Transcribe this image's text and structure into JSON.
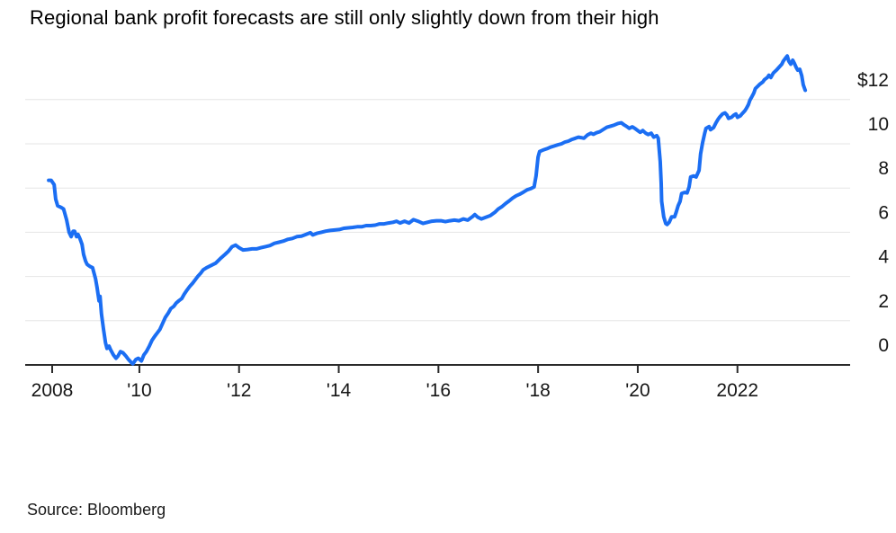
{
  "title": "Regional bank profit forecasts are still only slightly down from their high",
  "source": "Source: Bloomberg",
  "chart_data": {
    "type": "line",
    "title": "Regional bank profit forecasts are still only slightly down from their high",
    "xlabel": "",
    "ylabel": "",
    "unit": "$ (USD)",
    "grid": true,
    "legend_position": "none",
    "line_color": "#1b6ef3",
    "axis_color": "#2a2a2a",
    "grid_color": "#e5e5e5",
    "y_axis": {
      "side": "right",
      "range": [
        0,
        14.2
      ],
      "ticks": [
        {
          "v": 12,
          "label": "$12"
        },
        {
          "v": 10,
          "label": "10"
        },
        {
          "v": 8,
          "label": "8"
        },
        {
          "v": 6,
          "label": "6"
        },
        {
          "v": 4,
          "label": "4"
        },
        {
          "v": 2,
          "label": "2"
        },
        {
          "v": 0,
          "label": "0"
        }
      ]
    },
    "x_axis": {
      "range": [
        2008.1,
        2023.45
      ],
      "ticks": [
        {
          "t": 2008.25,
          "label": "2008"
        },
        {
          "t": 2010,
          "label": "'10"
        },
        {
          "t": 2012,
          "label": "'12"
        },
        {
          "t": 2014,
          "label": "'14"
        },
        {
          "t": 2016,
          "label": "'16"
        },
        {
          "t": 2018,
          "label": "'18"
        },
        {
          "t": 2020,
          "label": "'20"
        },
        {
          "t": 2022,
          "label": "2022"
        }
      ]
    },
    "series": [
      {
        "name": "Regional bank profit forecast",
        "points": [
          [
            2008.18,
            8.35
          ],
          [
            2008.23,
            8.35
          ],
          [
            2008.29,
            8.15
          ],
          [
            2008.32,
            7.5
          ],
          [
            2008.36,
            7.2
          ],
          [
            2008.43,
            7.12
          ],
          [
            2008.48,
            7.05
          ],
          [
            2008.54,
            6.55
          ],
          [
            2008.59,
            6.0
          ],
          [
            2008.63,
            5.8
          ],
          [
            2008.67,
            6.05
          ],
          [
            2008.7,
            6.05
          ],
          [
            2008.74,
            5.8
          ],
          [
            2008.77,
            5.9
          ],
          [
            2008.81,
            5.7
          ],
          [
            2008.85,
            5.45
          ],
          [
            2008.88,
            5.0
          ],
          [
            2008.92,
            4.7
          ],
          [
            2008.95,
            4.55
          ],
          [
            2009.01,
            4.45
          ],
          [
            2009.06,
            4.4
          ],
          [
            2009.12,
            3.9
          ],
          [
            2009.15,
            3.5
          ],
          [
            2009.19,
            2.9
          ],
          [
            2009.21,
            3.1
          ],
          [
            2009.24,
            2.3
          ],
          [
            2009.28,
            1.6
          ],
          [
            2009.32,
            1.0
          ],
          [
            2009.35,
            0.75
          ],
          [
            2009.39,
            0.85
          ],
          [
            2009.42,
            0.7
          ],
          [
            2009.48,
            0.45
          ],
          [
            2009.53,
            0.3
          ],
          [
            2009.57,
            0.4
          ],
          [
            2009.62,
            0.6
          ],
          [
            2009.67,
            0.55
          ],
          [
            2009.73,
            0.4
          ],
          [
            2009.78,
            0.25
          ],
          [
            2009.84,
            0.1
          ],
          [
            2009.87,
            0.05
          ],
          [
            2009.93,
            0.25
          ],
          [
            2009.98,
            0.3
          ],
          [
            2010.04,
            0.18
          ],
          [
            2010.09,
            0.45
          ],
          [
            2010.14,
            0.6
          ],
          [
            2010.2,
            0.85
          ],
          [
            2010.25,
            1.1
          ],
          [
            2010.31,
            1.3
          ],
          [
            2010.36,
            1.45
          ],
          [
            2010.41,
            1.6
          ],
          [
            2010.47,
            1.9
          ],
          [
            2010.52,
            2.15
          ],
          [
            2010.58,
            2.35
          ],
          [
            2010.63,
            2.55
          ],
          [
            2010.69,
            2.65
          ],
          [
            2010.74,
            2.8
          ],
          [
            2010.79,
            2.9
          ],
          [
            2010.85,
            3.0
          ],
          [
            2010.9,
            3.2
          ],
          [
            2010.96,
            3.4
          ],
          [
            2011.01,
            3.55
          ],
          [
            2011.07,
            3.7
          ],
          [
            2011.12,
            3.85
          ],
          [
            2011.17,
            4.0
          ],
          [
            2011.23,
            4.15
          ],
          [
            2011.28,
            4.3
          ],
          [
            2011.35,
            4.4
          ],
          [
            2011.44,
            4.5
          ],
          [
            2011.53,
            4.6
          ],
          [
            2011.62,
            4.8
          ],
          [
            2011.72,
            5.0
          ],
          [
            2011.79,
            5.15
          ],
          [
            2011.86,
            5.35
          ],
          [
            2011.93,
            5.42
          ],
          [
            2012.0,
            5.3
          ],
          [
            2012.08,
            5.2
          ],
          [
            2012.17,
            5.22
          ],
          [
            2012.26,
            5.25
          ],
          [
            2012.35,
            5.25
          ],
          [
            2012.44,
            5.3
          ],
          [
            2012.53,
            5.35
          ],
          [
            2012.62,
            5.4
          ],
          [
            2012.71,
            5.5
          ],
          [
            2012.8,
            5.55
          ],
          [
            2012.89,
            5.6
          ],
          [
            2012.98,
            5.68
          ],
          [
            2013.07,
            5.72
          ],
          [
            2013.16,
            5.8
          ],
          [
            2013.25,
            5.82
          ],
          [
            2013.34,
            5.9
          ],
          [
            2013.43,
            5.98
          ],
          [
            2013.48,
            5.88
          ],
          [
            2013.56,
            5.95
          ],
          [
            2013.65,
            6.0
          ],
          [
            2013.74,
            6.05
          ],
          [
            2013.83,
            6.08
          ],
          [
            2013.92,
            6.1
          ],
          [
            2014.01,
            6.12
          ],
          [
            2014.1,
            6.18
          ],
          [
            2014.19,
            6.2
          ],
          [
            2014.28,
            6.22
          ],
          [
            2014.37,
            6.25
          ],
          [
            2014.46,
            6.25
          ],
          [
            2014.55,
            6.3
          ],
          [
            2014.64,
            6.3
          ],
          [
            2014.73,
            6.32
          ],
          [
            2014.82,
            6.38
          ],
          [
            2014.91,
            6.38
          ],
          [
            2015.0,
            6.42
          ],
          [
            2015.09,
            6.45
          ],
          [
            2015.16,
            6.5
          ],
          [
            2015.23,
            6.42
          ],
          [
            2015.32,
            6.5
          ],
          [
            2015.41,
            6.42
          ],
          [
            2015.5,
            6.57
          ],
          [
            2015.59,
            6.5
          ],
          [
            2015.69,
            6.4
          ],
          [
            2015.78,
            6.45
          ],
          [
            2015.87,
            6.5
          ],
          [
            2015.96,
            6.52
          ],
          [
            2016.05,
            6.52
          ],
          [
            2016.14,
            6.48
          ],
          [
            2016.23,
            6.52
          ],
          [
            2016.32,
            6.55
          ],
          [
            2016.41,
            6.52
          ],
          [
            2016.5,
            6.6
          ],
          [
            2016.59,
            6.55
          ],
          [
            2016.68,
            6.7
          ],
          [
            2016.73,
            6.8
          ],
          [
            2016.79,
            6.68
          ],
          [
            2016.86,
            6.6
          ],
          [
            2016.95,
            6.68
          ],
          [
            2017.04,
            6.75
          ],
          [
            2017.13,
            6.9
          ],
          [
            2017.2,
            7.05
          ],
          [
            2017.27,
            7.15
          ],
          [
            2017.35,
            7.3
          ],
          [
            2017.42,
            7.42
          ],
          [
            2017.49,
            7.55
          ],
          [
            2017.56,
            7.65
          ],
          [
            2017.63,
            7.72
          ],
          [
            2017.71,
            7.82
          ],
          [
            2017.78,
            7.92
          ],
          [
            2017.85,
            7.97
          ],
          [
            2017.92,
            8.05
          ],
          [
            2017.96,
            8.55
          ],
          [
            2018.0,
            9.4
          ],
          [
            2018.03,
            9.65
          ],
          [
            2018.1,
            9.72
          ],
          [
            2018.18,
            9.78
          ],
          [
            2018.25,
            9.85
          ],
          [
            2018.32,
            9.9
          ],
          [
            2018.39,
            9.95
          ],
          [
            2018.47,
            10.0
          ],
          [
            2018.54,
            10.08
          ],
          [
            2018.61,
            10.12
          ],
          [
            2018.68,
            10.2
          ],
          [
            2018.75,
            10.25
          ],
          [
            2018.81,
            10.3
          ],
          [
            2018.86,
            10.28
          ],
          [
            2018.92,
            10.25
          ],
          [
            2018.99,
            10.4
          ],
          [
            2019.06,
            10.48
          ],
          [
            2019.11,
            10.43
          ],
          [
            2019.17,
            10.5
          ],
          [
            2019.24,
            10.55
          ],
          [
            2019.31,
            10.65
          ],
          [
            2019.38,
            10.75
          ],
          [
            2019.46,
            10.8
          ],
          [
            2019.53,
            10.85
          ],
          [
            2019.6,
            10.92
          ],
          [
            2019.67,
            10.95
          ],
          [
            2019.73,
            10.85
          ],
          [
            2019.78,
            10.78
          ],
          [
            2019.83,
            10.7
          ],
          [
            2019.89,
            10.77
          ],
          [
            2019.94,
            10.7
          ],
          [
            2020.0,
            10.6
          ],
          [
            2020.05,
            10.52
          ],
          [
            2020.1,
            10.6
          ],
          [
            2020.16,
            10.48
          ],
          [
            2020.21,
            10.42
          ],
          [
            2020.27,
            10.48
          ],
          [
            2020.32,
            10.3
          ],
          [
            2020.38,
            10.37
          ],
          [
            2020.41,
            10.25
          ],
          [
            2020.45,
            9.2
          ],
          [
            2020.47,
            8.2
          ],
          [
            2020.48,
            7.4
          ],
          [
            2020.52,
            6.7
          ],
          [
            2020.56,
            6.4
          ],
          [
            2020.59,
            6.35
          ],
          [
            2020.63,
            6.45
          ],
          [
            2020.68,
            6.7
          ],
          [
            2020.74,
            6.7
          ],
          [
            2020.77,
            6.9
          ],
          [
            2020.81,
            7.2
          ],
          [
            2020.85,
            7.4
          ],
          [
            2020.88,
            7.75
          ],
          [
            2020.94,
            7.8
          ],
          [
            2020.99,
            7.78
          ],
          [
            2021.03,
            8.05
          ],
          [
            2021.06,
            8.5
          ],
          [
            2021.12,
            8.55
          ],
          [
            2021.17,
            8.5
          ],
          [
            2021.23,
            8.8
          ],
          [
            2021.26,
            9.55
          ],
          [
            2021.3,
            10.05
          ],
          [
            2021.34,
            10.45
          ],
          [
            2021.37,
            10.7
          ],
          [
            2021.43,
            10.78
          ],
          [
            2021.46,
            10.64
          ],
          [
            2021.52,
            10.73
          ],
          [
            2021.57,
            10.95
          ],
          [
            2021.61,
            11.1
          ],
          [
            2021.64,
            11.2
          ],
          [
            2021.7,
            11.35
          ],
          [
            2021.75,
            11.4
          ],
          [
            2021.79,
            11.3
          ],
          [
            2021.82,
            11.15
          ],
          [
            2021.88,
            11.2
          ],
          [
            2021.93,
            11.3
          ],
          [
            2021.97,
            11.35
          ],
          [
            2022.0,
            11.2
          ],
          [
            2022.06,
            11.27
          ],
          [
            2022.09,
            11.35
          ],
          [
            2022.15,
            11.5
          ],
          [
            2022.18,
            11.6
          ],
          [
            2022.22,
            11.77
          ],
          [
            2022.25,
            11.97
          ],
          [
            2022.29,
            12.13
          ],
          [
            2022.33,
            12.3
          ],
          [
            2022.36,
            12.5
          ],
          [
            2022.42,
            12.63
          ],
          [
            2022.45,
            12.7
          ],
          [
            2022.51,
            12.8
          ],
          [
            2022.54,
            12.9
          ],
          [
            2022.6,
            13.0
          ],
          [
            2022.63,
            13.1
          ],
          [
            2022.67,
            13.0
          ],
          [
            2022.72,
            13.2
          ],
          [
            2022.78,
            13.33
          ],
          [
            2022.83,
            13.45
          ],
          [
            2022.89,
            13.6
          ],
          [
            2022.92,
            13.74
          ],
          [
            2022.96,
            13.86
          ],
          [
            2023.0,
            13.97
          ],
          [
            2023.03,
            13.74
          ],
          [
            2023.07,
            13.6
          ],
          [
            2023.11,
            13.78
          ],
          [
            2023.14,
            13.65
          ],
          [
            2023.18,
            13.45
          ],
          [
            2023.21,
            13.33
          ],
          [
            2023.25,
            13.37
          ],
          [
            2023.29,
            13.08
          ],
          [
            2023.32,
            12.67
          ],
          [
            2023.36,
            12.42
          ]
        ]
      }
    ]
  }
}
